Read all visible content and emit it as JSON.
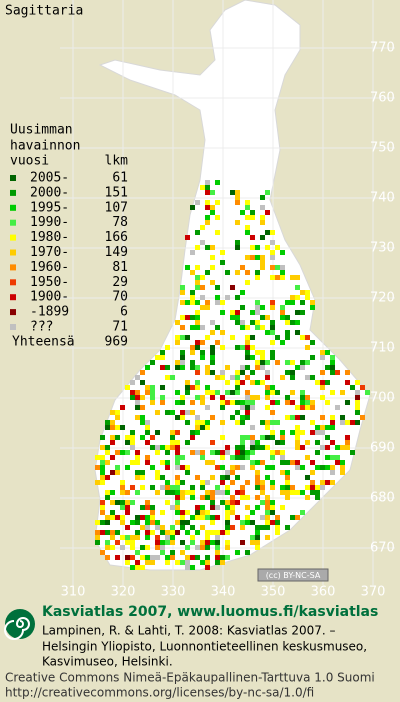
{
  "title": "Sagittaria",
  "legend": {
    "heading": [
      "Uusimman",
      "havainnon"
    ],
    "col_headers": [
      "vuosi",
      "lkm"
    ],
    "rows": [
      {
        "label": "2005-",
        "count": 61,
        "color": "#006400"
      },
      {
        "label": "2000-",
        "count": 151,
        "color": "#009a00"
      },
      {
        "label": "1995-",
        "count": 107,
        "color": "#00cc00"
      },
      {
        "label": "1990-",
        "count": 78,
        "color": "#44ee44"
      },
      {
        "label": "1980-",
        "count": 166,
        "color": "#ffff00"
      },
      {
        "label": "1970-",
        "count": 149,
        "color": "#ffcc00"
      },
      {
        "label": "1960-",
        "count": 81,
        "color": "#ff8c00"
      },
      {
        "label": "1950-",
        "count": 29,
        "color": "#ee3a00"
      },
      {
        "label": "1900-",
        "count": 70,
        "color": "#cc0000"
      },
      {
        "label": "-1899",
        "count": 6,
        "color": "#880000"
      },
      {
        "label": "???",
        "count": 71,
        "color": "#c0c0c0"
      }
    ],
    "total": {
      "label": "Yhteensä",
      "count": 969
    }
  },
  "grid": {
    "y_labels": [
      770,
      760,
      750,
      740,
      730,
      720,
      710,
      700,
      690,
      680,
      670
    ],
    "x_labels": [
      310,
      320,
      330,
      340,
      350,
      360,
      370
    ]
  },
  "license_badge": "(cc) BY-NC-SA",
  "footer": {
    "title": "Kasviatlas 2007, www.luomus.fi/kasviatlas",
    "citation": [
      "Lampinen, R. & Lahti, T. 2008: Kasviatlas 2007. –",
      "Helsingin Yliopisto, Luonnontieteellinen keskusmuseo,",
      "Kasvimuseo, Helsinki."
    ],
    "license": [
      "Creative Commons Nimeä-Epäkaupallinen-Tarttuva 1.0 Suomi",
      "http://creativecommons.org/licenses/by-nc-sa/1.0/fi"
    ]
  }
}
